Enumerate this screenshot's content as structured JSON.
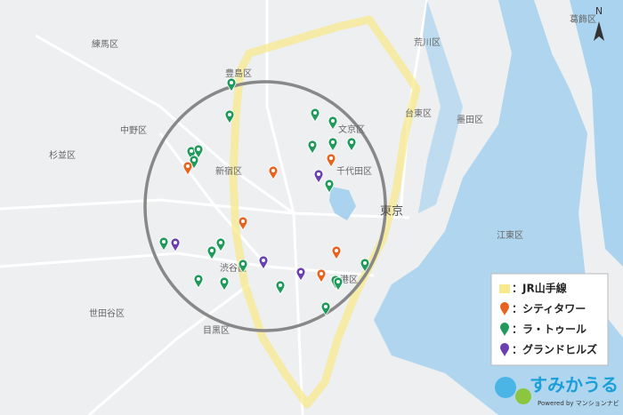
{
  "compass": "N",
  "wards": [
    "練馬区",
    "豊島区",
    "荒川区",
    "葛飾区",
    "台東区",
    "墨田区",
    "中野区",
    "杉並区",
    "文京区",
    "千代田区",
    "新宿区",
    "東京",
    "江東区",
    "渋谷区",
    "港区",
    "世田谷区",
    "目黒区"
  ],
  "legend": [
    {
      "label": "：JR山手線",
      "color": "#f7e98c"
    },
    {
      "label": "：シティタワー",
      "color": "#e8641e"
    },
    {
      "label": "：ラ・トゥール",
      "color": "#1f9a5a"
    },
    {
      "label": "：グランドヒルズ",
      "color": "#6a3fb0"
    }
  ],
  "logo": {
    "title": "すみかうる",
    "powered": "Powered by マンションナビ"
  }
}
